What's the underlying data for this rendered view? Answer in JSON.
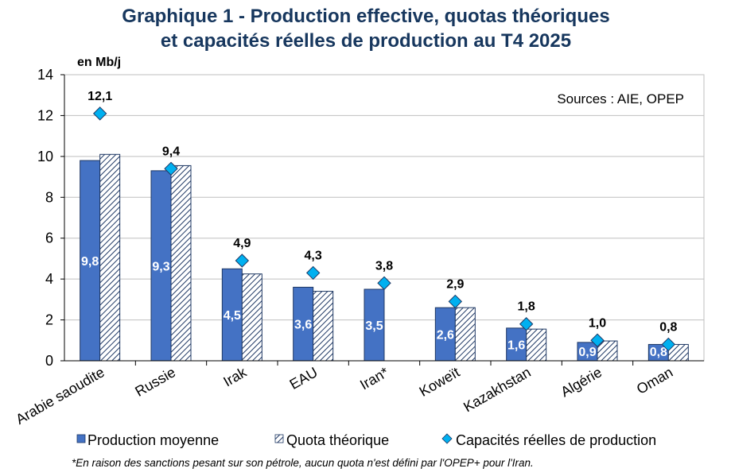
{
  "title_line1": "Graphique 1 - Production effective, quotas théoriques",
  "title_line2": "et capacités réelles de production au T4 2025",
  "source_note": "Sources : AIE, OPEP",
  "footnote": "*En raison des sanctions pesant sur son pétrole, aucun quota n'est défini par l'OPEP+ pour l'Iran.",
  "colors": {
    "title": "#17375E",
    "production": "#4472C4",
    "quota_hatch": "#1F3864",
    "capacity": "#00B0F0",
    "grid": "#BFBFBF"
  },
  "chart_data": {
    "type": "bar",
    "ylabel": "en Mb/j",
    "ylim": [
      0,
      14
    ],
    "yticks": [
      0,
      2,
      4,
      6,
      8,
      10,
      12,
      14
    ],
    "grid": true,
    "legend_position": "bottom",
    "categories": [
      "Arabie saoudite",
      "Russie",
      "Irak",
      "EAU",
      "Iran*",
      "Koweït",
      "Kazakhstan",
      "Algérie",
      "Oman"
    ],
    "series": [
      {
        "name": "Production moyenne",
        "kind": "bar",
        "values": [
          9.8,
          9.3,
          4.5,
          3.6,
          3.5,
          2.6,
          1.6,
          0.9,
          0.8
        ],
        "labels": [
          "9,8",
          "9,3",
          "4,5",
          "3,6",
          "3,5",
          "2,6",
          "1,6",
          "0,9",
          "0,8"
        ]
      },
      {
        "name": "Quota théorique",
        "kind": "bar-hatched",
        "values": [
          10.1,
          9.55,
          4.25,
          3.4,
          null,
          2.6,
          1.55,
          0.97,
          0.8
        ]
      },
      {
        "name": "Capacités réelles de production",
        "kind": "marker-diamond",
        "values": [
          12.1,
          9.4,
          4.9,
          4.3,
          3.8,
          2.9,
          1.8,
          1.0,
          0.8
        ],
        "labels": [
          "12,1",
          "9,4",
          "4,9",
          "4,3",
          "3,8",
          "2,9",
          "1,8",
          "1,0",
          "0,8"
        ]
      }
    ]
  }
}
